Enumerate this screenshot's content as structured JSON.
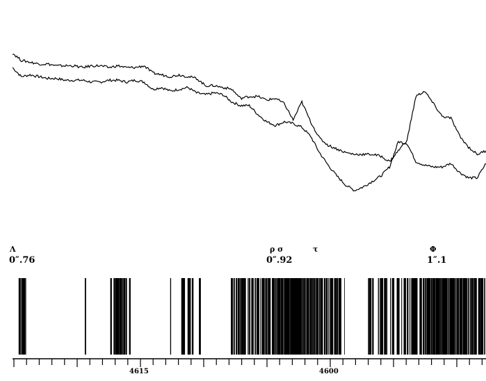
{
  "chart_data": {
    "type": "line",
    "title": "",
    "xlabel": "",
    "ylabel": "",
    "x_ticks": [
      "4615",
      "4600"
    ],
    "line_annotations": [
      {
        "symbol": "Λ",
        "value": "0″.76"
      },
      {
        "symbol": "ρ σ",
        "value": "0″.92"
      },
      {
        "symbol": "τ",
        "value": ""
      },
      {
        "symbol": "Φ",
        "value": "1″.1"
      }
    ],
    "series": [
      {
        "values": [
          0.78,
          0.73,
          0.74,
          0.73,
          0.72,
          0.72,
          0.71,
          0.71,
          0.71,
          0.7,
          0.7,
          0.71,
          0.71,
          0.7,
          0.71,
          0.7,
          0.66,
          0.67,
          0.65,
          0.66,
          0.67,
          0.64,
          0.63,
          0.64,
          0.63,
          0.59,
          0.57,
          0.57,
          0.52,
          0.48,
          0.46,
          0.48,
          0.47,
          0.45,
          0.4,
          0.31,
          0.24,
          0.18,
          0.13,
          0.1,
          0.12,
          0.15,
          0.18,
          0.23,
          0.37,
          0.36,
          0.26,
          0.24,
          0.23,
          0.23,
          0.25,
          0.2,
          0.17,
          0.17,
          0.25
        ]
      },
      {
        "values": [
          0.86,
          0.82,
          0.81,
          0.8,
          0.8,
          0.79,
          0.79,
          0.79,
          0.78,
          0.79,
          0.79,
          0.78,
          0.79,
          0.78,
          0.78,
          0.79,
          0.75,
          0.74,
          0.73,
          0.74,
          0.73,
          0.72,
          0.68,
          0.68,
          0.67,
          0.66,
          0.61,
          0.62,
          0.62,
          0.6,
          0.61,
          0.58,
          0.49,
          0.59,
          0.48,
          0.39,
          0.35,
          0.33,
          0.31,
          0.3,
          0.3,
          0.3,
          0.29,
          0.26,
          0.32,
          0.38,
          0.62,
          0.65,
          0.58,
          0.51,
          0.5,
          0.4,
          0.34,
          0.3,
          0.32
        ]
      }
    ],
    "spectrum_bands": [
      [
        0.01,
        0.026,
        1.0
      ],
      [
        0.15,
        0.153,
        0.6
      ],
      [
        0.205,
        0.25,
        0.8
      ],
      [
        0.33,
        0.334,
        0.6
      ],
      [
        0.355,
        0.38,
        0.7
      ],
      [
        0.39,
        0.395,
        0.6
      ],
      [
        0.46,
        0.55,
        0.85
      ],
      [
        0.55,
        0.655,
        1.0
      ],
      [
        0.655,
        0.705,
        0.8
      ],
      [
        0.75,
        0.8,
        0.6
      ],
      [
        0.8,
        0.87,
        0.75
      ],
      [
        0.87,
        0.95,
        1.0
      ],
      [
        0.95,
        1.0,
        0.85
      ]
    ]
  }
}
